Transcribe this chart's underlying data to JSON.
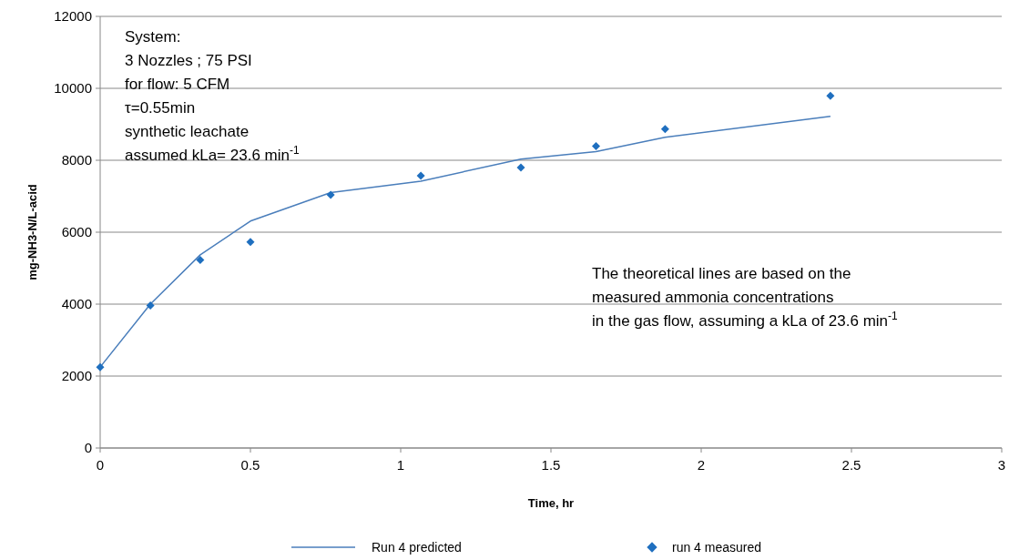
{
  "chart_data": {
    "type": "line",
    "xlabel": "Time, hr",
    "ylabel": "mg-NH3-N/L-acid",
    "xlim": [
      0,
      3
    ],
    "xticks": [
      0,
      0.5,
      1,
      1.5,
      2,
      2.5,
      3
    ],
    "ylim": [
      0,
      12000
    ],
    "yticks": [
      0,
      2000,
      4000,
      6000,
      8000,
      10000,
      12000
    ],
    "grid": "y",
    "legend": "bottom",
    "series": [
      {
        "name": "Run 4 predicted",
        "marker": "none",
        "color": "#4a7ebb",
        "x": [
          0,
          0.167,
          0.333,
          0.5,
          0.767,
          1.067,
          1.4,
          1.65,
          1.88,
          2.43
        ],
        "values": [
          2250,
          4000,
          5370,
          6310,
          7100,
          7420,
          8030,
          8240,
          8640,
          9220
        ]
      },
      {
        "name": "run 4 measured",
        "type": "scatter",
        "marker": "diamond",
        "color": "#1f6fbf",
        "x": [
          0,
          0.167,
          0.333,
          0.5,
          0.767,
          1.067,
          1.4,
          1.65,
          1.88,
          2.43
        ],
        "values": [
          2250,
          3960,
          5230,
          5730,
          7040,
          7570,
          7800,
          8390,
          8870,
          9790
        ]
      }
    ],
    "annotations": [
      "System:\n3 Nozzles ; 75  PSI\nfor flow: 5 CFM\nτ=0.55min\nsynthetic leachate\nassumed kLa= 23.6 min$^{-1}$",
      "The theoretical lines are based on the\nmeasured ammonia concentrations\nin the gas flow, assuming a kLa of 23.6 min$^{-1}$"
    ]
  }
}
